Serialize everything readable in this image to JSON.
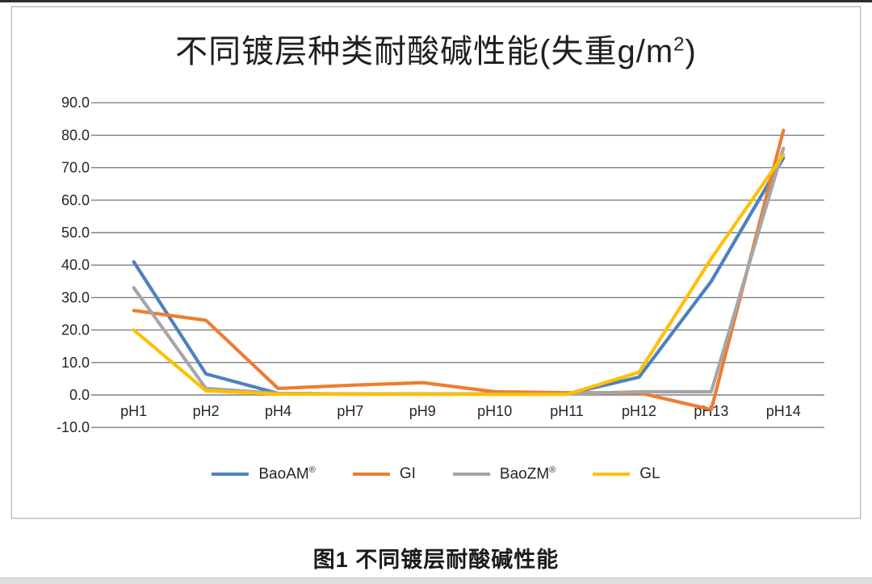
{
  "page": {
    "caption": "图1 不同镀层耐酸碱性能"
  },
  "chart_data": {
    "type": "line",
    "title": "不同镀层种类耐酸碱性能(失重g/m²)",
    "categories": [
      "pH1",
      "pH2",
      "pH4",
      "pH7",
      "pH9",
      "pH10",
      "pH11",
      "pH12",
      "pH13",
      "pH14"
    ],
    "series": [
      {
        "name": "BaoAM®",
        "color": "#4E81BD",
        "values": [
          41.0,
          6.5,
          0.5,
          0.3,
          0.3,
          0.3,
          0.3,
          5.5,
          35.0,
          73.0
        ]
      },
      {
        "name": "GI",
        "color": "#ED7D31",
        "values": [
          26.0,
          23.0,
          2.0,
          3.0,
          3.8,
          1.0,
          0.7,
          0.7,
          -4.5,
          81.5
        ]
      },
      {
        "name": "BaoZM®",
        "color": "#A6A6A6",
        "values": [
          33.0,
          2.0,
          0.5,
          0.3,
          0.3,
          0.3,
          0.3,
          1.0,
          1.0,
          76.0
        ]
      },
      {
        "name": "GL",
        "color": "#FFC000",
        "values": [
          20.0,
          1.3,
          0.3,
          0.2,
          0.2,
          0.2,
          0.2,
          7.0,
          42.0,
          74.0
        ]
      }
    ],
    "xlabel": "",
    "ylabel": "",
    "ylim": [
      -10,
      90
    ],
    "ytick_step": 10,
    "ytick_labels": [
      "-10.0",
      "0.0",
      "10.0",
      "20.0",
      "30.0",
      "40.0",
      "50.0",
      "60.0",
      "70.0",
      "80.0",
      "90.0"
    ],
    "grid": true,
    "gridline_color": "#7f7f7f",
    "axis_text_color": "#262626",
    "legend_position": "bottom"
  }
}
